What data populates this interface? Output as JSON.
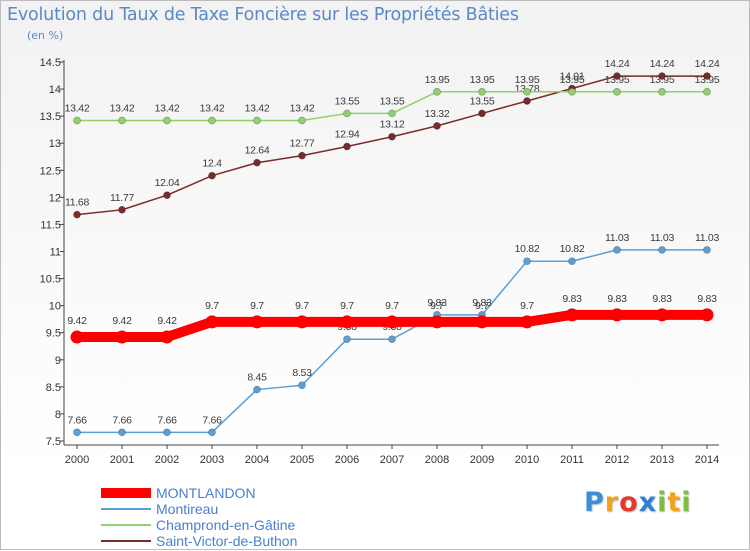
{
  "header": {
    "title": "Evolution du Taux de Taxe Foncière sur les Propriétés Bâties",
    "unit": "(en %)"
  },
  "logo": {
    "text": "Proxiti",
    "letters": [
      {
        "ch": "P",
        "color": "#3a8fd8"
      },
      {
        "ch": "r",
        "color": "#f3a21b"
      },
      {
        "ch": "o",
        "color": "#e23a2b"
      },
      {
        "ch": "x",
        "color": "#2f7fd2"
      },
      {
        "ch": "i",
        "color": "#7cbf3a"
      },
      {
        "ch": "t",
        "color": "#f3a21b"
      },
      {
        "ch": "i",
        "color": "#7cbf3a"
      }
    ]
  },
  "chart_data": {
    "type": "line",
    "title": "Evolution du Taux de Taxe Foncière sur les Propriétés Bâties",
    "ylabel": "(en %)",
    "xlabel": "",
    "ylim": [
      7.5,
      14.5
    ],
    "yticks": [
      "7.5",
      "8",
      "8.5",
      "9",
      "9.5",
      "10",
      "10.5",
      "11",
      "11.5",
      "12",
      "12.5",
      "13",
      "13.5",
      "14",
      "14.5"
    ],
    "grid": false,
    "legend_position": "bottom-left",
    "categories": [
      "2000",
      "2001",
      "2002",
      "2003",
      "2004",
      "2005",
      "2006",
      "2007",
      "2008",
      "2009",
      "2010",
      "2011",
      "2012",
      "2013",
      "2014"
    ],
    "series": [
      {
        "name": "MONTLANDON",
        "color": "#ff0000",
        "values": [
          9.42,
          9.42,
          9.42,
          9.7,
          9.7,
          9.7,
          9.7,
          9.7,
          9.7,
          9.7,
          9.7,
          9.83,
          9.83,
          9.83,
          9.83
        ],
        "labels": [
          "9.42",
          "9.42",
          "9.42",
          "9.7",
          "9.7",
          "9.7",
          "9.7",
          "9.7",
          "9.7",
          "9.7",
          "9.7",
          "9.83",
          "9.83",
          "9.83",
          "9.83"
        ]
      },
      {
        "name": "Montireau",
        "color": "#5c9fd4",
        "values": [
          7.66,
          7.66,
          7.66,
          7.66,
          8.45,
          8.53,
          9.38,
          9.38,
          9.83,
          9.83,
          10.82,
          10.82,
          11.03,
          11.03,
          11.03
        ],
        "labels": [
          "7.66",
          "7.66",
          "7.66",
          "7.66",
          "8.45",
          "8.53",
          "9.38",
          "9.38",
          "9.83",
          "9.83",
          "10.82",
          "10.82",
          "11.03",
          "11.03",
          "11.03"
        ]
      },
      {
        "name": "Champrond-en-Gâtine",
        "color": "#8fd16a",
        "values": [
          13.42,
          13.42,
          13.42,
          13.42,
          13.42,
          13.42,
          13.55,
          13.55,
          13.95,
          13.95,
          13.95,
          13.95,
          13.95,
          13.95,
          13.95
        ],
        "labels": [
          "13.42",
          "13.42",
          "13.42",
          "13.42",
          "13.42",
          "13.42",
          "13.55",
          "13.55",
          "13.95",
          "13.95",
          "13.95",
          "13.95",
          "13.95",
          "13.95",
          "13.95"
        ]
      },
      {
        "name": "Saint-Victor-de-Buthon",
        "color": "#7a2a2a",
        "values": [
          11.68,
          11.77,
          12.04,
          12.4,
          12.64,
          12.77,
          12.94,
          13.12,
          13.32,
          13.55,
          13.78,
          14.01,
          14.24,
          14.24,
          14.24
        ],
        "labels": [
          "11.68",
          "11.77",
          "12.04",
          "12.4",
          "12.64",
          "12.77",
          "12.94",
          "13.12",
          "13.32",
          "13.55",
          "13.78",
          "14.01",
          "14.24",
          "14.24",
          "14.24"
        ]
      }
    ]
  }
}
